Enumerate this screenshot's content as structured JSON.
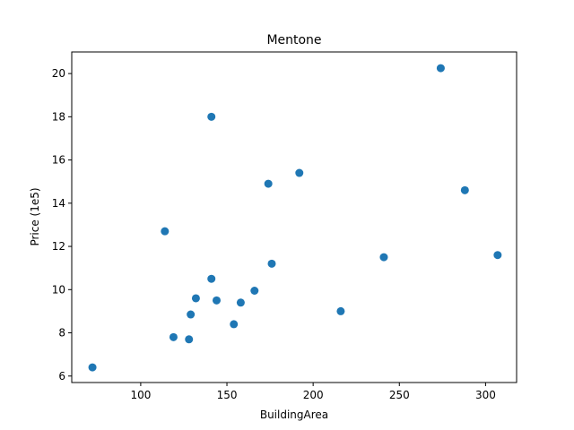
{
  "chart_data": {
    "type": "scatter",
    "title": "Mentone",
    "xlabel": "BuildingArea",
    "ylabel": "Price (1e5)",
    "xlim": [
      60,
      318
    ],
    "ylim": [
      5.7,
      21.0
    ],
    "xticks": [
      100,
      150,
      200,
      250,
      300
    ],
    "yticks": [
      6,
      8,
      10,
      12,
      14,
      16,
      18,
      20
    ],
    "grid": false,
    "marker_color": "#1f77b4",
    "points": [
      {
        "x": 72,
        "y": 6.4
      },
      {
        "x": 114,
        "y": 12.7
      },
      {
        "x": 119,
        "y": 7.8
      },
      {
        "x": 128,
        "y": 7.7
      },
      {
        "x": 129,
        "y": 8.85
      },
      {
        "x": 132,
        "y": 9.6
      },
      {
        "x": 141,
        "y": 18.0
      },
      {
        "x": 141,
        "y": 10.5
      },
      {
        "x": 144,
        "y": 9.5
      },
      {
        "x": 154,
        "y": 8.4
      },
      {
        "x": 158,
        "y": 9.4
      },
      {
        "x": 166,
        "y": 9.95
      },
      {
        "x": 174,
        "y": 14.9
      },
      {
        "x": 176,
        "y": 11.2
      },
      {
        "x": 192,
        "y": 15.4
      },
      {
        "x": 216,
        "y": 9.0
      },
      {
        "x": 241,
        "y": 11.5
      },
      {
        "x": 274,
        "y": 20.25
      },
      {
        "x": 288,
        "y": 14.6
      },
      {
        "x": 307,
        "y": 11.6
      }
    ]
  }
}
